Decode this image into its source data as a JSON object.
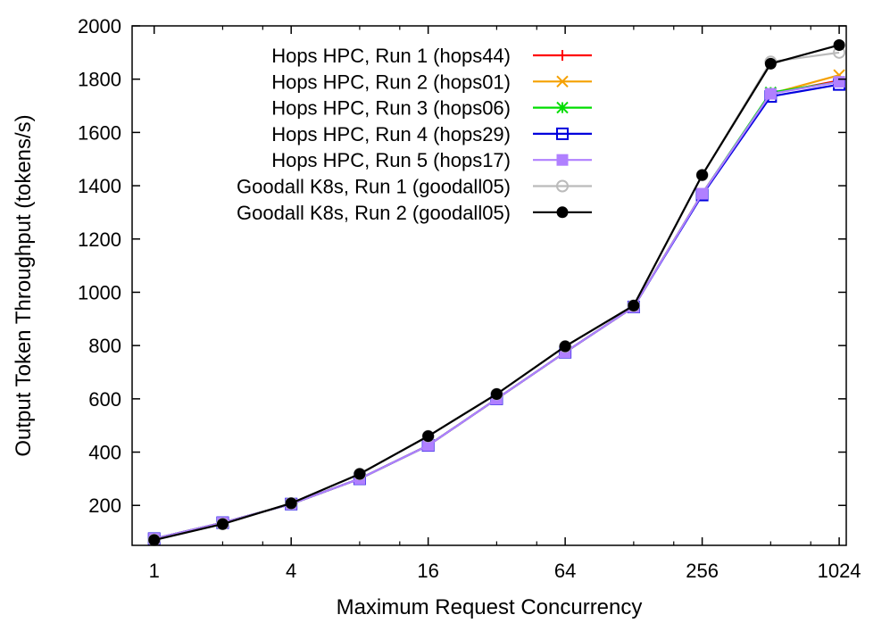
{
  "chart_data": {
    "type": "line",
    "xlabel": "Maximum Request Concurrency",
    "ylabel": "Output Token Throughput (tokens/s)",
    "x_scale": "log2",
    "xlim": [
      0.8,
      1100
    ],
    "ylim": [
      50,
      2000
    ],
    "x_ticks": [
      1,
      4,
      16,
      64,
      256,
      1024
    ],
    "x_tick_labels": [
      "1",
      "4",
      "16",
      "64",
      "256",
      "1024"
    ],
    "y_ticks": [
      200,
      400,
      600,
      800,
      1000,
      1200,
      1400,
      1600,
      1800,
      2000
    ],
    "y_tick_labels": [
      "200",
      "400",
      "600",
      "800",
      "1000",
      "1200",
      "1400",
      "1600",
      "1800",
      "2000"
    ],
    "grid": false,
    "legend_position": "top-left",
    "x": [
      1,
      2,
      4,
      8,
      16,
      32,
      64,
      128,
      256,
      512,
      1024
    ],
    "series": [
      {
        "name": "Hops HPC, Run 1 (hops44)",
        "color": "#ff0000",
        "marker": "plus",
        "values": [
          75,
          135,
          205,
          300,
          425,
          600,
          775,
          945,
          1370,
          1745,
          1795
        ]
      },
      {
        "name": "Hops HPC, Run 2 (hops01)",
        "color": "#f5a000",
        "marker": "cross",
        "values": [
          75,
          135,
          205,
          300,
          425,
          600,
          775,
          945,
          1370,
          1745,
          1815
        ]
      },
      {
        "name": "Hops HPC, Run 3 (hops06)",
        "color": "#00dd00",
        "marker": "asterisk",
        "values": [
          75,
          135,
          205,
          300,
          425,
          600,
          775,
          945,
          1370,
          1750,
          1790
        ]
      },
      {
        "name": "Hops HPC, Run 4 (hops29)",
        "color": "#0000dd",
        "marker": "open-square",
        "values": [
          75,
          135,
          205,
          300,
          425,
          600,
          775,
          945,
          1365,
          1735,
          1780
        ]
      },
      {
        "name": "Hops HPC, Run 5 (hops17)",
        "color": "#b080ff",
        "marker": "filled-square",
        "values": [
          75,
          135,
          205,
          300,
          425,
          600,
          775,
          945,
          1370,
          1745,
          1790
        ]
      },
      {
        "name": "Goodall K8s, Run 1 (goodall05)",
        "color": "#bbbbbb",
        "marker": "open-circle",
        "values": [
          70,
          130,
          208,
          318,
          460,
          618,
          797,
          950,
          1440,
          1865,
          1900
        ]
      },
      {
        "name": "Goodall K8s, Run 2 (goodall05)",
        "color": "#000000",
        "marker": "filled-circle",
        "values": [
          70,
          130,
          208,
          318,
          460,
          618,
          797,
          950,
          1440,
          1858,
          1928
        ]
      }
    ]
  }
}
